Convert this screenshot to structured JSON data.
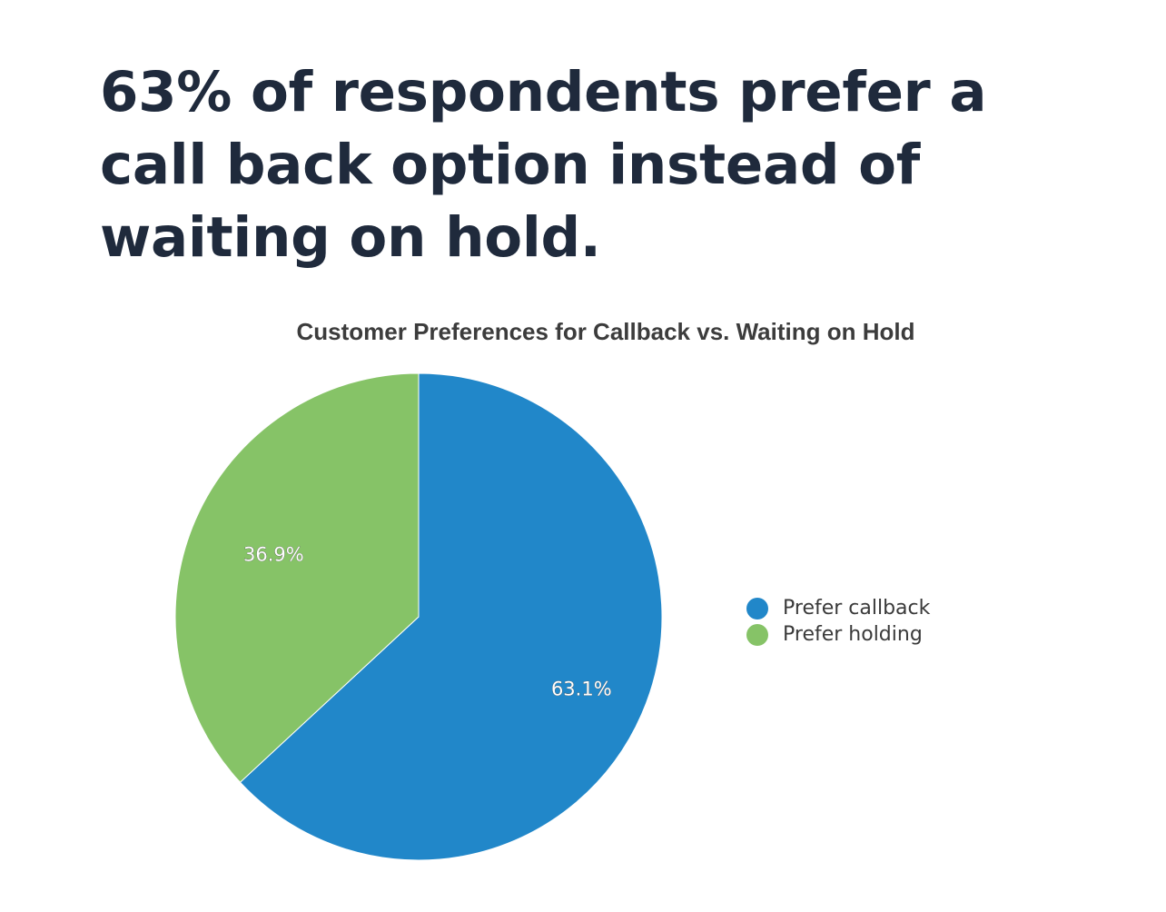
{
  "headline": "63% of respondents prefer a call back option instead of waiting on hold.",
  "chart_data": {
    "type": "pie",
    "title": "Customer Preferences for Callback vs. Waiting on Hold",
    "categories": [
      "Prefer callback",
      "Prefer holding"
    ],
    "values": [
      63.1,
      36.9
    ],
    "labels": [
      "63.1%",
      "36.9%"
    ],
    "colors": [
      "#2187c9",
      "#86c367"
    ],
    "legend_position": "right"
  }
}
